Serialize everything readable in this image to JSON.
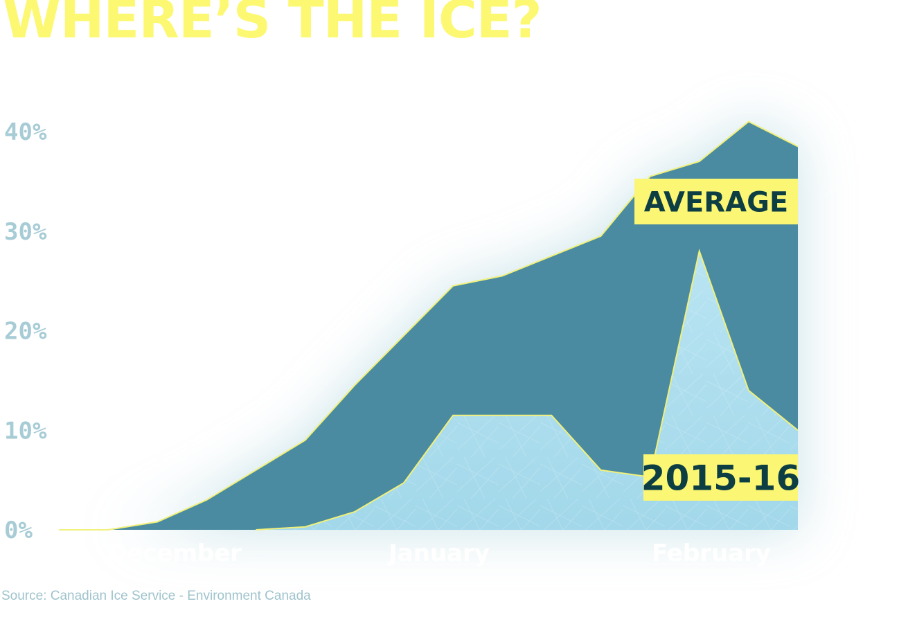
{
  "title": "WHERE’S THE ICE?",
  "source": "Source: Canadian Ice Service - Environment Canada",
  "colors": {
    "title": "#fdf872",
    "average_fill": "#4a8ba1",
    "season_fill": "#a9dbec",
    "outline": "#f1f07a",
    "label_box": "#fbf673",
    "label_text": "#0c3e44",
    "tick_text": "#a7ccd6"
  },
  "chart_data": {
    "type": "area",
    "title": "WHERE’S THE ICE?",
    "xlabel": "",
    "ylabel": "",
    "ylim": [
      0,
      40
    ],
    "y_ticks": [
      "0%",
      "10%",
      "20%",
      "30%",
      "40%"
    ],
    "x_tick_labels": [
      "December",
      "January",
      "February"
    ],
    "grid": false,
    "legend": "inline labels at right",
    "series": [
      {
        "name": "AVERAGE",
        "values": [
          0,
          0,
          0.8,
          3,
          6,
          9,
          14.5,
          19.5,
          24.5,
          25.5,
          27.5,
          29.5,
          35.5,
          37,
          41,
          38.5
        ]
      },
      {
        "name": "2015-16",
        "values": [
          null,
          null,
          null,
          null,
          0,
          0.3,
          1.8,
          4.7,
          11.5,
          11.5,
          11.5,
          6,
          5.3,
          28,
          14,
          10
        ]
      }
    ]
  }
}
